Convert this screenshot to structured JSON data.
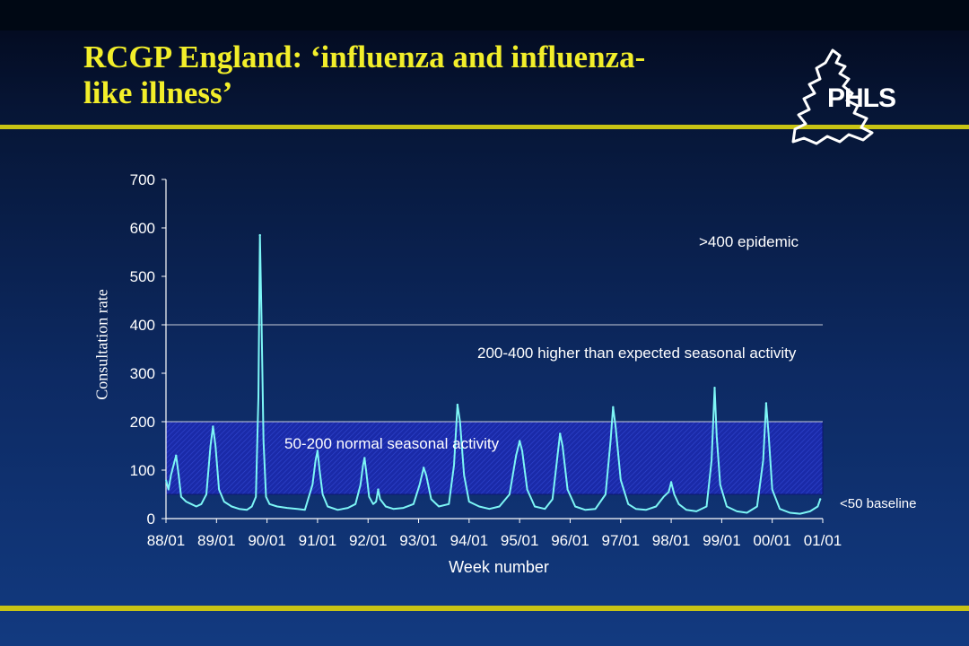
{
  "title": "RCGP England: ‘influenza and influenza-like illness’",
  "logo_text": "PHLS",
  "colors": {
    "title": "#f2ee2a",
    "accent_rule": "#c8c414",
    "series_line": "#7df6f6",
    "band_fill": "#1a2aa8",
    "gridline": "#c8ccd8"
  },
  "chart_data": {
    "type": "line",
    "title": "",
    "xlabel": "Week number",
    "ylabel": "Consultation rate",
    "ylim": [
      0,
      700
    ],
    "yticks": [
      0,
      100,
      200,
      300,
      400,
      500,
      600,
      700
    ],
    "ytick_labels": [
      "0",
      "100",
      "200",
      "300",
      "400",
      "500",
      "600",
      "700"
    ],
    "xtick_labels": [
      "88/01",
      "89/01",
      "90/01",
      "91/01",
      "92/01",
      "93/01",
      "94/01",
      "95/01",
      "96/01",
      "97/01",
      "98/01",
      "99/01",
      "00/01",
      "01/01"
    ],
    "xlim": [
      0,
      13
    ],
    "gridlines_y": [
      200,
      400
    ],
    "shaded_band": [
      50,
      200
    ],
    "annotations": {
      "epidemic": ">400 epidemic",
      "higher": "200-400 higher than expected seasonal activity",
      "normal": "50-200 normal seasonal activity",
      "baseline": "<50 baseline"
    },
    "peaks": [
      {
        "x": 0.2,
        "y": 130
      },
      {
        "x": 0.93,
        "y": 190
      },
      {
        "x": 1.86,
        "y": 585
      },
      {
        "x": 3.0,
        "y": 140
      },
      {
        "x": 3.93,
        "y": 125
      },
      {
        "x": 4.2,
        "y": 60
      },
      {
        "x": 5.1,
        "y": 105
      },
      {
        "x": 5.77,
        "y": 235
      },
      {
        "x": 7.0,
        "y": 160
      },
      {
        "x": 7.8,
        "y": 175
      },
      {
        "x": 8.85,
        "y": 230
      },
      {
        "x": 10.0,
        "y": 75
      },
      {
        "x": 10.86,
        "y": 270
      },
      {
        "x": 11.88,
        "y": 238
      },
      {
        "x": 12.95,
        "y": 40
      }
    ],
    "series": [
      {
        "x": [
          0.0,
          0.05,
          0.1,
          0.15,
          0.2,
          0.25,
          0.3,
          0.4,
          0.5,
          0.6,
          0.7,
          0.8,
          0.88,
          0.93,
          0.98,
          1.05,
          1.15,
          1.3,
          1.45,
          1.6,
          1.7,
          1.78,
          1.83,
          1.86,
          1.89,
          1.93,
          1.98,
          2.05,
          2.2,
          2.4,
          2.6,
          2.75,
          2.9,
          2.96,
          3.0,
          3.04,
          3.1,
          3.2,
          3.4,
          3.6,
          3.75,
          3.85,
          3.9,
          3.93,
          3.96,
          4.02,
          4.1,
          4.16,
          4.2,
          4.24,
          4.35,
          4.5,
          4.7,
          4.9,
          5.02,
          5.1,
          5.15,
          5.25,
          5.4,
          5.6,
          5.7,
          5.77,
          5.82,
          5.9,
          6.0,
          6.2,
          6.4,
          6.6,
          6.8,
          6.93,
          7.0,
          7.05,
          7.15,
          7.3,
          7.5,
          7.65,
          7.75,
          7.8,
          7.85,
          7.95,
          8.1,
          8.3,
          8.5,
          8.7,
          8.8,
          8.85,
          8.9,
          9.0,
          9.15,
          9.3,
          9.5,
          9.7,
          9.85,
          9.95,
          10.0,
          10.06,
          10.15,
          10.3,
          10.5,
          10.7,
          10.8,
          10.86,
          10.9,
          10.97,
          11.1,
          11.3,
          11.5,
          11.7,
          11.82,
          11.88,
          11.93,
          12.0,
          12.15,
          12.35,
          12.55,
          12.75,
          12.9,
          12.95
        ],
        "values": [
          80,
          60,
          90,
          110,
          130,
          90,
          45,
          35,
          30,
          25,
          30,
          50,
          150,
          190,
          150,
          60,
          35,
          25,
          20,
          18,
          25,
          45,
          250,
          585,
          420,
          160,
          45,
          30,
          25,
          22,
          20,
          18,
          70,
          120,
          140,
          100,
          50,
          25,
          18,
          22,
          30,
          70,
          110,
          125,
          100,
          45,
          30,
          35,
          60,
          40,
          25,
          20,
          22,
          30,
          70,
          105,
          90,
          40,
          25,
          30,
          110,
          235,
          200,
          90,
          35,
          25,
          20,
          25,
          50,
          130,
          160,
          140,
          60,
          25,
          20,
          40,
          130,
          175,
          150,
          60,
          25,
          18,
          20,
          50,
          160,
          230,
          190,
          80,
          30,
          20,
          18,
          25,
          45,
          55,
          75,
          50,
          30,
          18,
          15,
          25,
          120,
          270,
          170,
          70,
          25,
          15,
          12,
          25,
          120,
          238,
          170,
          60,
          20,
          12,
          10,
          15,
          25,
          40
        ]
      }
    ]
  }
}
